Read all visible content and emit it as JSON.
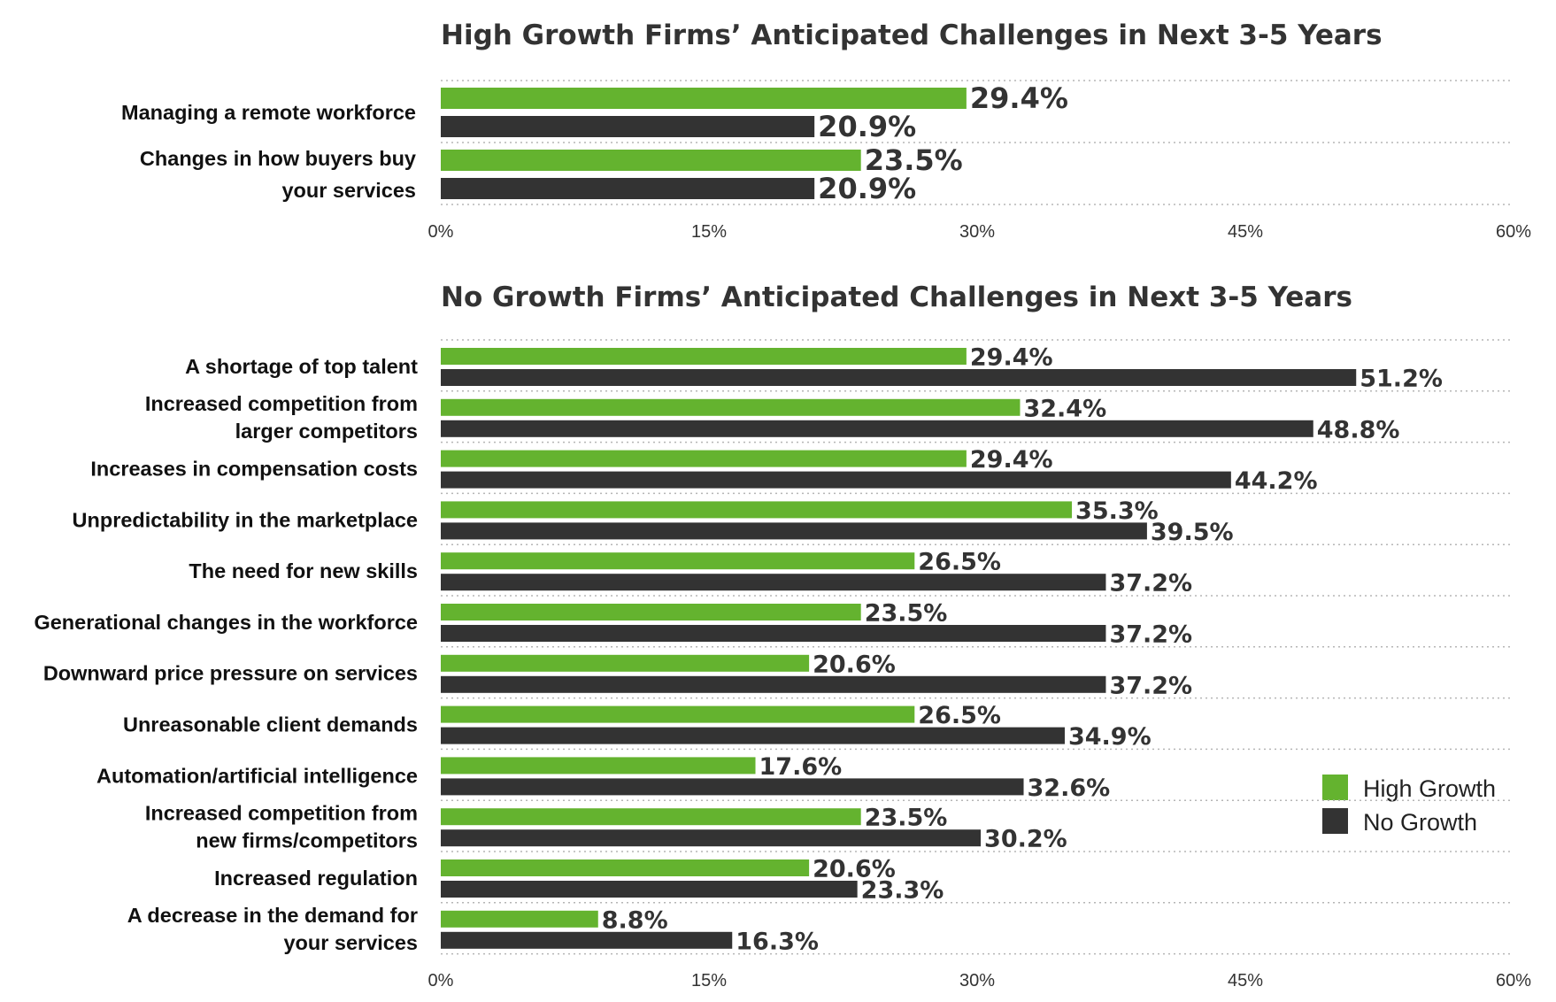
{
  "colors": {
    "high_growth": "#64b32f",
    "no_growth": "#333333"
  },
  "legend": [
    {
      "label": "High Growth",
      "color": "#64b32f"
    },
    {
      "label": "No Growth",
      "color": "#333333"
    }
  ],
  "chart_data": [
    {
      "type": "bar",
      "orientation": "horizontal",
      "title": "High Growth Firms’ Anticipated Challenges in Next 3-5 Years",
      "xlim": [
        0,
        60
      ],
      "ticks": [
        "0%",
        "15%",
        "30%",
        "45%",
        "60%"
      ],
      "tick_values": [
        0,
        15,
        30,
        45,
        60
      ],
      "grid": true,
      "categories": [
        [
          "Managing a remote workforce"
        ],
        [
          "Changes in how buyers buy",
          "your services"
        ]
      ],
      "series": [
        {
          "name": "High Growth",
          "values": [
            29.4,
            23.5
          ]
        },
        {
          "name": "No Growth",
          "values": [
            20.9,
            20.9
          ]
        }
      ]
    },
    {
      "type": "bar",
      "orientation": "horizontal",
      "title": "No Growth Firms’ Anticipated Challenges in Next 3-5 Years",
      "xlim": [
        0,
        60
      ],
      "ticks": [
        "0%",
        "15%",
        "30%",
        "45%",
        "60%"
      ],
      "tick_values": [
        0,
        15,
        30,
        45,
        60
      ],
      "grid": true,
      "legend_position": "right",
      "categories": [
        [
          "A shortage of top talent"
        ],
        [
          "Increased competition from",
          "larger competitors"
        ],
        [
          "Increases in compensation costs"
        ],
        [
          "Unpredictability in the marketplace"
        ],
        [
          "The need for new skills"
        ],
        [
          "Generational changes in the workforce"
        ],
        [
          "Downward price pressure on services"
        ],
        [
          "Unreasonable client demands"
        ],
        [
          "Automation/artificial intelligence"
        ],
        [
          "Increased competition from",
          "new firms/competitors"
        ],
        [
          "Increased regulation"
        ],
        [
          "A decrease in the demand for",
          "your services"
        ]
      ],
      "series": [
        {
          "name": "High Growth",
          "values": [
            29.4,
            32.4,
            29.4,
            35.3,
            26.5,
            23.5,
            20.6,
            26.5,
            17.6,
            23.5,
            20.6,
            8.8
          ]
        },
        {
          "name": "No Growth",
          "values": [
            51.2,
            48.8,
            44.2,
            39.5,
            37.2,
            37.2,
            37.2,
            34.9,
            32.6,
            30.2,
            23.3,
            16.3
          ]
        }
      ]
    }
  ]
}
